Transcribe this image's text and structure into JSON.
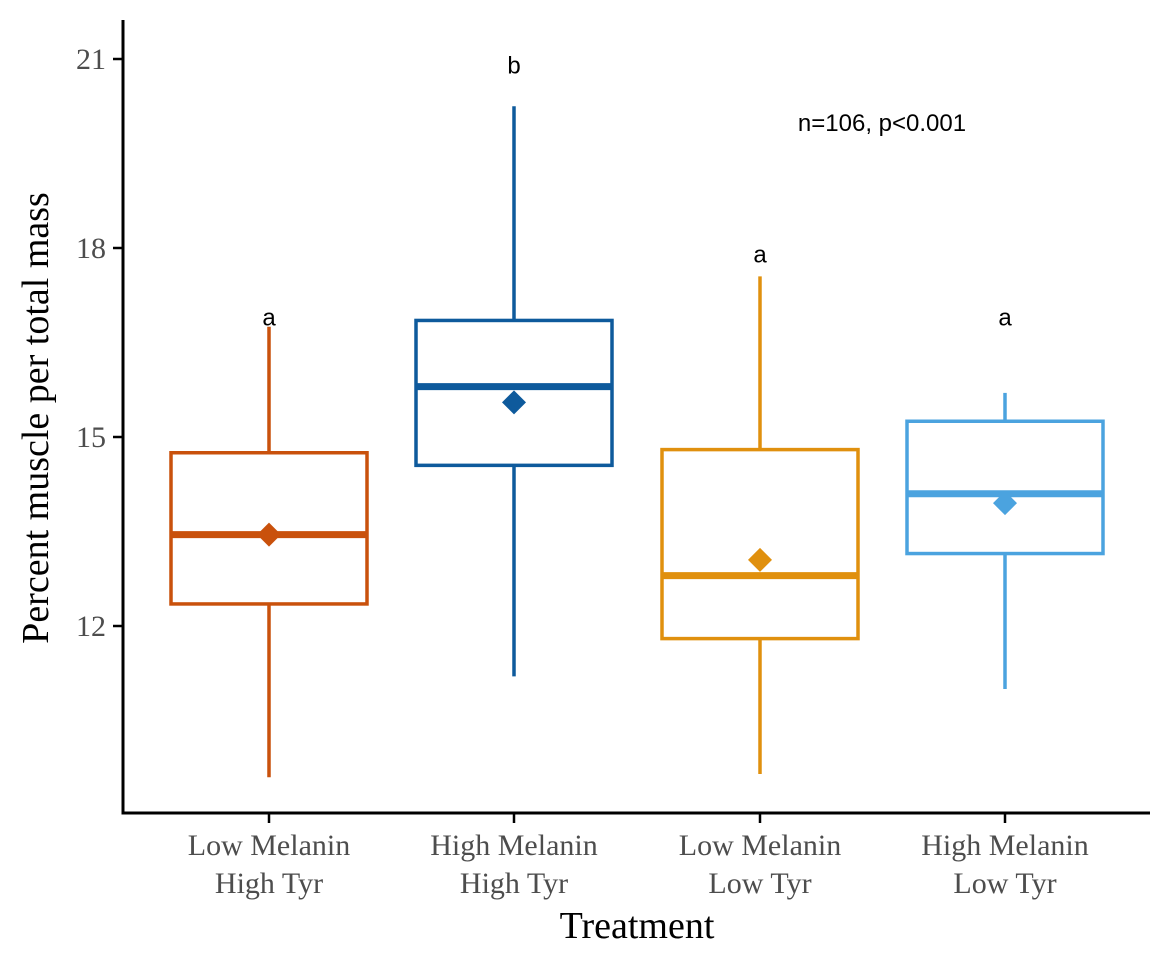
{
  "chart_data": {
    "type": "box",
    "xlabel": "Treatment",
    "ylabel": "Percent muscle per total mass",
    "ylim": [
      8.9,
      21.6
    ],
    "yticks": [
      12,
      15,
      18,
      21
    ],
    "ytick_labels": [
      "12",
      "15",
      "18",
      "21"
    ],
    "annotation": "n=106, p<0.001",
    "grid": false,
    "legend": "none",
    "categories": [
      {
        "line1": "Low Melanin",
        "line2": "High Tyr",
        "color": "#C9510C",
        "min": 9.6,
        "q1": 12.35,
        "median": 13.45,
        "q3": 14.75,
        "max": 16.75,
        "mean": 13.45,
        "letter": "a",
        "letter_y": 16.9
      },
      {
        "line1": "High Melanin",
        "line2": "High Tyr",
        "color": "#0E5A9C",
        "min": 11.2,
        "q1": 14.55,
        "median": 15.8,
        "q3": 16.85,
        "max": 20.25,
        "mean": 15.55,
        "letter": "b",
        "letter_y": 20.9
      },
      {
        "line1": "Low Melanin",
        "line2": "Low Tyr",
        "color": "#E0900E",
        "min": 9.65,
        "q1": 11.8,
        "median": 12.8,
        "q3": 14.8,
        "max": 17.55,
        "mean": 13.05,
        "letter": "a",
        "letter_y": 17.9
      },
      {
        "line1": "High Melanin",
        "line2": "Low Tyr",
        "color": "#4BA3DF",
        "min": 11.0,
        "q1": 13.15,
        "median": 14.1,
        "q3": 15.25,
        "max": 15.7,
        "mean": 13.95,
        "letter": "a",
        "letter_y": 16.9
      }
    ]
  }
}
